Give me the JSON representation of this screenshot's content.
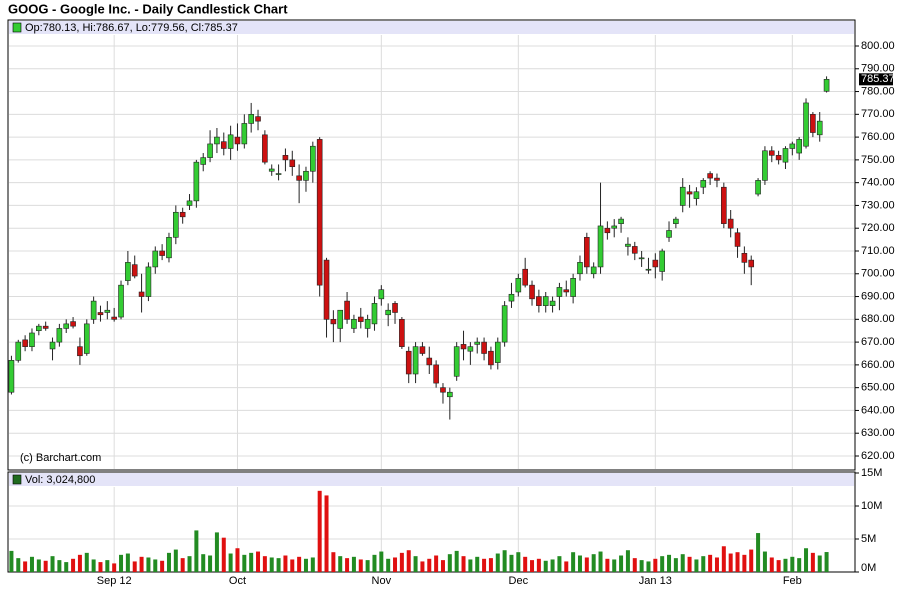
{
  "chart_data": {
    "type": "candlestick",
    "title": "GOOG - Google Inc. - Daily Candlestick Chart",
    "legend_text": "Op:780.13, Hi:786.67, Lo:779.56, Cl:785.37",
    "source": "(c) Barchart.com",
    "volume_legend": "Vol: 3,024,800",
    "last_price": 785.37,
    "up_color": "#33cc33",
    "down_color": "#cc1111",
    "volume_up_color": "#228b22",
    "volume_down_color": "#e01010",
    "grid": true,
    "categories": [
      null,
      null,
      null,
      null,
      null,
      null,
      null,
      null,
      null,
      null,
      null,
      null,
      null,
      null,
      null,
      "Sep 12",
      null,
      null,
      null,
      null,
      null,
      null,
      null,
      null,
      null,
      null,
      null,
      null,
      null,
      null,
      null,
      null,
      null,
      "Oct",
      null,
      null,
      null,
      null,
      null,
      null,
      null,
      null,
      null,
      null,
      null,
      null,
      null,
      null,
      null,
      null,
      null,
      null,
      null,
      null,
      "Nov",
      null,
      null,
      null,
      null,
      null,
      null,
      null,
      null,
      null,
      null,
      null,
      null,
      null,
      null,
      null,
      null,
      null,
      null,
      null,
      "Dec",
      null,
      null,
      null,
      null,
      null,
      null,
      null,
      null,
      null,
      null,
      null,
      null,
      null,
      null,
      null,
      null,
      null,
      null,
      null,
      "Jan 13",
      null,
      null,
      null,
      null,
      null,
      null,
      null,
      null,
      null,
      null,
      null,
      null,
      null,
      null,
      null,
      null,
      null,
      null,
      null,
      "Feb",
      null,
      null,
      null,
      null,
      null
    ],
    "open": [
      648,
      662,
      671,
      668,
      675,
      677,
      667,
      670,
      676,
      679,
      668,
      665,
      680,
      683,
      683,
      681,
      681,
      697,
      704,
      692,
      690,
      703,
      710,
      707,
      716,
      727,
      730,
      732,
      748,
      751,
      757,
      758,
      755,
      760,
      757,
      766,
      769,
      761,
      745,
      744,
      752,
      750,
      743,
      741,
      745,
      759,
      706,
      680,
      676,
      688,
      676,
      681,
      676,
      678,
      689,
      682,
      687,
      680,
      666,
      656,
      668,
      663,
      660,
      650,
      646,
      655,
      669,
      666,
      669,
      670,
      666,
      661,
      670,
      688,
      692,
      702,
      695,
      690,
      686,
      686,
      690,
      693,
      690,
      700,
      716,
      700,
      703,
      720,
      720,
      722,
      712,
      712,
      707,
      702,
      706,
      701,
      716,
      722,
      730,
      736,
      733,
      738,
      744,
      742,
      738,
      724,
      718,
      709,
      706,
      735,
      741,
      754,
      752,
      749,
      755,
      753,
      756,
      770,
      761,
      780.13
    ],
    "high": [
      664,
      671,
      673,
      676,
      678,
      679,
      672,
      678,
      680,
      681,
      672,
      680,
      690,
      686,
      688,
      685,
      697,
      710,
      708,
      700,
      705,
      712,
      713,
      718,
      730,
      729,
      735,
      750,
      753,
      763,
      764,
      762,
      765,
      766,
      770,
      775,
      772,
      763,
      748,
      748,
      755,
      754,
      748,
      747,
      758,
      760,
      707,
      684,
      684,
      692,
      682,
      685,
      682,
      690,
      695,
      687,
      688,
      681,
      668,
      670,
      670,
      668,
      662,
      652,
      650,
      670,
      675,
      670,
      672,
      672,
      668,
      672,
      688,
      696,
      700,
      707,
      697,
      693,
      692,
      690,
      696,
      697,
      700,
      708,
      718,
      705,
      740,
      723,
      724,
      725,
      716,
      714,
      710,
      707,
      709,
      711,
      723,
      725,
      742,
      739,
      738,
      742,
      745,
      744,
      740,
      728,
      720,
      712,
      708,
      742,
      756,
      756,
      754,
      756,
      758,
      760,
      777,
      771,
      771,
      786.67
    ],
    "low": [
      647,
      661,
      666,
      666,
      673,
      675,
      662,
      668,
      674,
      676,
      660,
      664,
      678,
      679,
      680,
      679,
      680,
      695,
      698,
      683,
      688,
      700,
      706,
      705,
      713,
      722,
      728,
      729,
      745,
      749,
      753,
      752,
      750,
      754,
      755,
      762,
      763,
      748,
      743,
      741,
      745,
      743,
      731,
      736,
      740,
      690,
      672,
      670,
      670,
      678,
      674,
      676,
      672,
      675,
      686,
      677,
      678,
      667,
      652,
      652,
      664,
      656,
      650,
      643,
      636,
      653,
      662,
      660,
      665,
      662,
      658,
      658,
      668,
      685,
      690,
      694,
      686,
      683,
      683,
      683,
      684,
      690,
      687,
      697,
      700,
      698,
      700,
      715,
      716,
      718,
      708,
      706,
      703,
      700,
      698,
      697,
      714,
      720,
      727,
      729,
      730,
      735,
      739,
      738,
      720,
      716,
      707,
      700,
      695,
      734,
      739,
      749,
      748,
      746,
      752,
      750,
      755,
      760,
      758,
      779.56
    ],
    "close": [
      662,
      670,
      668,
      674,
      677,
      676,
      670,
      676,
      678,
      677,
      664,
      678,
      688,
      682,
      684,
      680,
      695,
      705,
      699,
      690,
      703,
      710,
      708,
      716,
      727,
      725,
      732,
      749,
      751,
      757,
      760,
      755,
      761,
      757,
      766,
      770,
      767,
      749,
      746,
      744,
      750,
      747,
      741,
      745,
      756,
      695,
      680,
      678,
      684,
      680,
      680,
      679,
      680,
      687,
      693,
      684,
      683,
      668,
      656,
      668,
      665,
      660,
      652,
      648,
      648,
      668,
      667,
      668,
      670,
      665,
      660,
      670,
      686,
      691,
      698,
      695,
      689,
      686,
      690,
      688,
      694,
      692,
      698,
      705,
      703,
      703,
      721,
      718,
      721,
      724,
      713,
      709,
      707,
      702,
      703,
      710,
      719,
      724,
      738,
      735,
      736,
      741,
      742,
      741,
      722,
      720,
      712,
      705,
      703,
      741,
      754,
      752,
      750,
      755,
      757,
      759,
      775,
      762,
      767,
      785.37
    ],
    "volume": [
      3200000,
      2100000,
      1600000,
      2300000,
      1900000,
      1700000,
      2400000,
      1800000,
      1500000,
      2000000,
      2600000,
      2900000,
      1900000,
      1500000,
      1800000,
      1300000,
      2600000,
      2800000,
      1600000,
      2300000,
      2200000,
      1900000,
      1700000,
      2900000,
      3400000,
      2100000,
      2400000,
      6300000,
      2700000,
      2500000,
      6000000,
      5200000,
      2800000,
      3600000,
      2600000,
      2900000,
      3100000,
      2400000,
      2200000,
      2100000,
      2500000,
      1900000,
      2300000,
      2000000,
      2200000,
      12300000,
      11600000,
      3000000,
      2400000,
      2100000,
      2300000,
      1900000,
      1800000,
      2600000,
      3100000,
      2000000,
      2200000,
      2900000,
      3300000,
      2400000,
      1600000,
      2000000,
      2500000,
      1800000,
      2700000,
      3200000,
      2400000,
      1900000,
      2300000,
      2000000,
      2100000,
      2800000,
      3300000,
      2600000,
      3000000,
      2300000,
      1800000,
      2000000,
      1700000,
      1900000,
      2400000,
      1600000,
      3000000,
      2500000,
      2200000,
      2700000,
      3100000,
      2000000,
      1900000,
      2500000,
      3300000,
      2100000,
      1800000,
      1600000,
      2000000,
      2400000,
      2600000,
      2100000,
      2700000,
      2300000,
      1900000,
      2400000,
      2600000,
      2200000,
      3900000,
      2800000,
      3000000,
      2600000,
      3400000,
      5900000,
      3100000,
      2200000,
      1800000,
      2000000,
      2300000,
      2100000,
      3600000,
      2900000,
      2500000,
      3024800
    ],
    "ylim": [
      613.85,
      811.41
    ],
    "yticks": [
      {
        "value": 620,
        "label": "620.00"
      },
      {
        "value": 630,
        "label": "630.00"
      },
      {
        "value": 640,
        "label": "640.00"
      },
      {
        "value": 650,
        "label": "650.00"
      },
      {
        "value": 660,
        "label": "660.00"
      },
      {
        "value": 670,
        "label": "670.00"
      },
      {
        "value": 680,
        "label": "680.00"
      },
      {
        "value": 690,
        "label": "690.00"
      },
      {
        "value": 700,
        "label": "700.00"
      },
      {
        "value": 710,
        "label": "710.00"
      },
      {
        "value": 720,
        "label": "720.00"
      },
      {
        "value": 730,
        "label": "730.00"
      },
      {
        "value": 740,
        "label": "740.00"
      },
      {
        "value": 750,
        "label": "750.00"
      },
      {
        "value": 760,
        "label": "760.00"
      },
      {
        "value": 770,
        "label": "770.00"
      },
      {
        "value": 780,
        "label": "780.00"
      },
      {
        "value": 790,
        "label": "790.00"
      },
      {
        "value": 800,
        "label": "800.00"
      }
    ],
    "volume_ylim": [
      0,
      15000000
    ],
    "volume_yticks": [
      {
        "value": 0,
        "label": "0M"
      },
      {
        "value": 5000000,
        "label": "5M"
      },
      {
        "value": 10000000,
        "label": "10M"
      },
      {
        "value": 15000000,
        "label": "15M"
      }
    ]
  }
}
